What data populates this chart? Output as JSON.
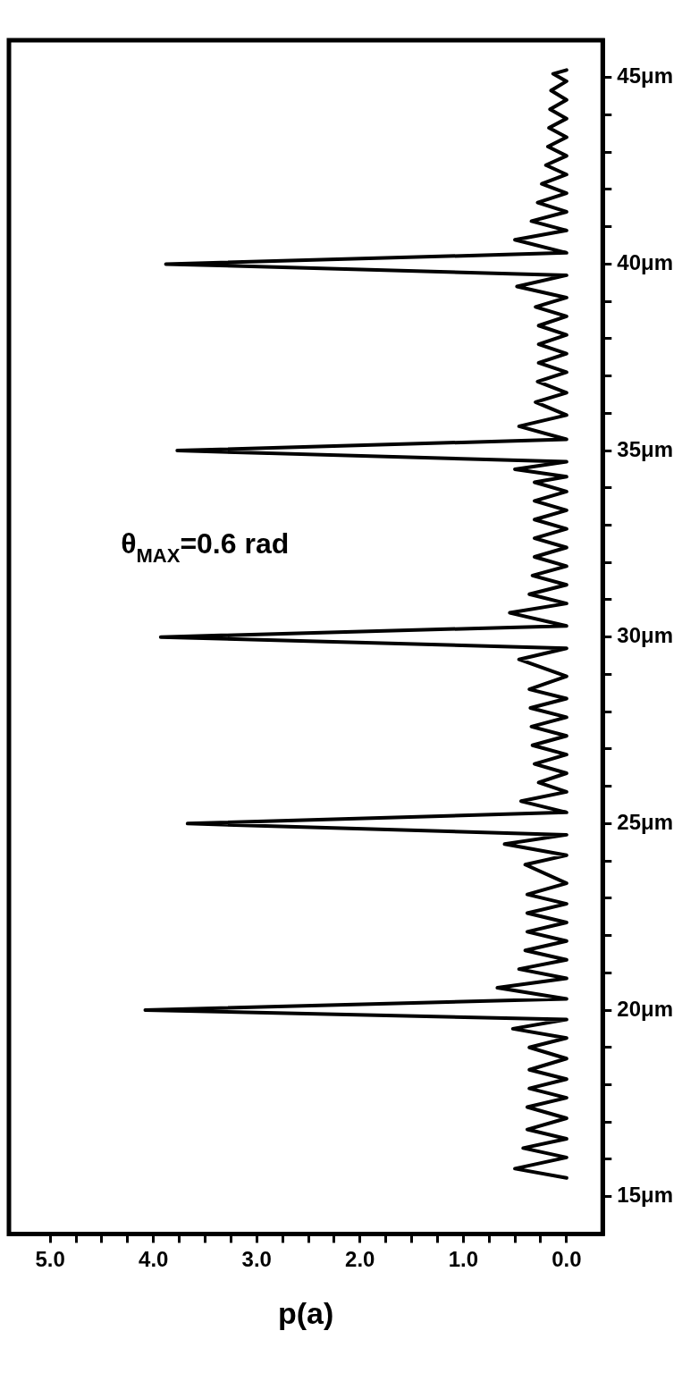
{
  "chart_data": {
    "type": "line",
    "orientation": "horizontal",
    "xlabel": "p(a)",
    "annotations": [
      "θ$_{MAX}$=0.6 rad"
    ],
    "xlim": [
      5.4,
      -0.35
    ],
    "ylim": [
      14,
      46
    ],
    "grid": false,
    "yticks": [
      {
        "value": 15,
        "label": "15μm"
      },
      {
        "value": 16,
        "label": null
      },
      {
        "value": 17,
        "label": null
      },
      {
        "value": 18,
        "label": null
      },
      {
        "value": 19,
        "label": null
      },
      {
        "value": 20,
        "label": "20μm"
      },
      {
        "value": 21,
        "label": null
      },
      {
        "value": 22,
        "label": null
      },
      {
        "value": 23,
        "label": null
      },
      {
        "value": 24,
        "label": null
      },
      {
        "value": 25,
        "label": "25μm"
      },
      {
        "value": 26,
        "label": null
      },
      {
        "value": 27,
        "label": null
      },
      {
        "value": 28,
        "label": null
      },
      {
        "value": 29,
        "label": null
      },
      {
        "value": 30,
        "label": "30μm"
      },
      {
        "value": 31,
        "label": null
      },
      {
        "value": 32,
        "label": null
      },
      {
        "value": 33,
        "label": null
      },
      {
        "value": 34,
        "label": null
      },
      {
        "value": 35,
        "label": "35μm"
      },
      {
        "value": 36,
        "label": null
      },
      {
        "value": 37,
        "label": null
      },
      {
        "value": 38,
        "label": null
      },
      {
        "value": 39,
        "label": null
      },
      {
        "value": 40,
        "label": "40μm"
      },
      {
        "value": 41,
        "label": null
      },
      {
        "value": 42,
        "label": null
      },
      {
        "value": 43,
        "label": null
      },
      {
        "value": 44,
        "label": null
      },
      {
        "value": 45,
        "label": "45μm"
      }
    ],
    "xticks": [
      {
        "value": 0,
        "label": "0.0"
      },
      {
        "value": 0.25,
        "label": null
      },
      {
        "value": 0.5,
        "label": null
      },
      {
        "value": 0.75,
        "label": null
      },
      {
        "value": 1,
        "label": "1.0"
      },
      {
        "value": 1.25,
        "label": null
      },
      {
        "value": 1.5,
        "label": null
      },
      {
        "value": 1.75,
        "label": null
      },
      {
        "value": 2,
        "label": "2.0"
      },
      {
        "value": 2.25,
        "label": null
      },
      {
        "value": 2.5,
        "label": null
      },
      {
        "value": 2.75,
        "label": null
      },
      {
        "value": 3,
        "label": "3.0"
      },
      {
        "value": 3.25,
        "label": null
      },
      {
        "value": 3.5,
        "label": null
      },
      {
        "value": 3.75,
        "label": null
      },
      {
        "value": 4,
        "label": "4.0"
      },
      {
        "value": 4.25,
        "label": null
      },
      {
        "value": 4.5,
        "label": null
      },
      {
        "value": 4.75,
        "label": null
      },
      {
        "value": 5,
        "label": "5.0"
      }
    ],
    "series": [
      {
        "color": "#000000",
        "x": [
          15.5,
          15.75,
          16.05,
          16.3,
          16.55,
          16.8,
          17.1,
          17.4,
          17.65,
          17.9,
          18.15,
          18.4,
          18.7,
          19.0,
          19.25,
          19.5,
          19.75,
          20.0,
          20.3,
          20.6,
          20.85,
          21.1,
          21.35,
          21.6,
          21.85,
          22.1,
          22.35,
          22.6,
          22.85,
          23.1,
          23.4,
          23.9,
          24.15,
          24.45,
          24.7,
          25.0,
          25.3,
          25.6,
          25.85,
          26.1,
          26.35,
          26.6,
          26.85,
          27.1,
          27.35,
          27.6,
          27.85,
          28.1,
          28.35,
          28.6,
          28.95,
          29.4,
          29.7,
          30.0,
          30.3,
          30.65,
          30.9,
          31.15,
          31.4,
          31.65,
          31.9,
          32.15,
          32.4,
          32.65,
          32.9,
          33.15,
          33.4,
          33.65,
          33.9,
          34.15,
          34.3,
          34.5,
          34.7,
          35.0,
          35.3,
          35.65,
          35.95,
          36.3,
          36.55,
          36.85,
          37.1,
          37.35,
          37.6,
          37.85,
          38.1,
          38.35,
          38.6,
          38.85,
          39.1,
          39.4,
          39.7,
          40.0,
          40.3,
          40.65,
          40.9,
          41.15,
          41.4,
          41.65,
          41.9,
          42.15,
          42.4,
          42.65,
          42.9,
          43.15,
          43.4,
          43.65,
          43.9,
          44.15,
          44.4,
          44.65,
          44.9,
          45.1,
          45.2
        ],
        "values": [
          0,
          0.5,
          0,
          0.42,
          0,
          0.38,
          0,
          0.38,
          0,
          0.36,
          0,
          0.36,
          0,
          0.36,
          0,
          0.52,
          0,
          4.08,
          0,
          0.67,
          0,
          0.46,
          0,
          0.4,
          0,
          0.38,
          0,
          0.38,
          0,
          0.38,
          0,
          0.4,
          0,
          0.6,
          0,
          3.67,
          0,
          0.44,
          0,
          0.27,
          0,
          0.31,
          0,
          0.33,
          0,
          0.34,
          0,
          0.35,
          0,
          0.36,
          0,
          0.46,
          0,
          3.93,
          0,
          0.55,
          0,
          0.36,
          0,
          0.33,
          0,
          0.31,
          0,
          0.31,
          0,
          0.31,
          0,
          0.31,
          0,
          0.31,
          0,
          0.5,
          0,
          3.77,
          0,
          0.46,
          0,
          0.3,
          0,
          0.28,
          0,
          0.27,
          0,
          0.27,
          0,
          0.27,
          0,
          0.3,
          0,
          0.48,
          0,
          3.88,
          0,
          0.5,
          0,
          0.34,
          0,
          0.28,
          0,
          0.24,
          0,
          0.2,
          0,
          0.18,
          0,
          0.17,
          0,
          0.16,
          0,
          0.15,
          0,
          0.13,
          0
        ]
      }
    ]
  }
}
